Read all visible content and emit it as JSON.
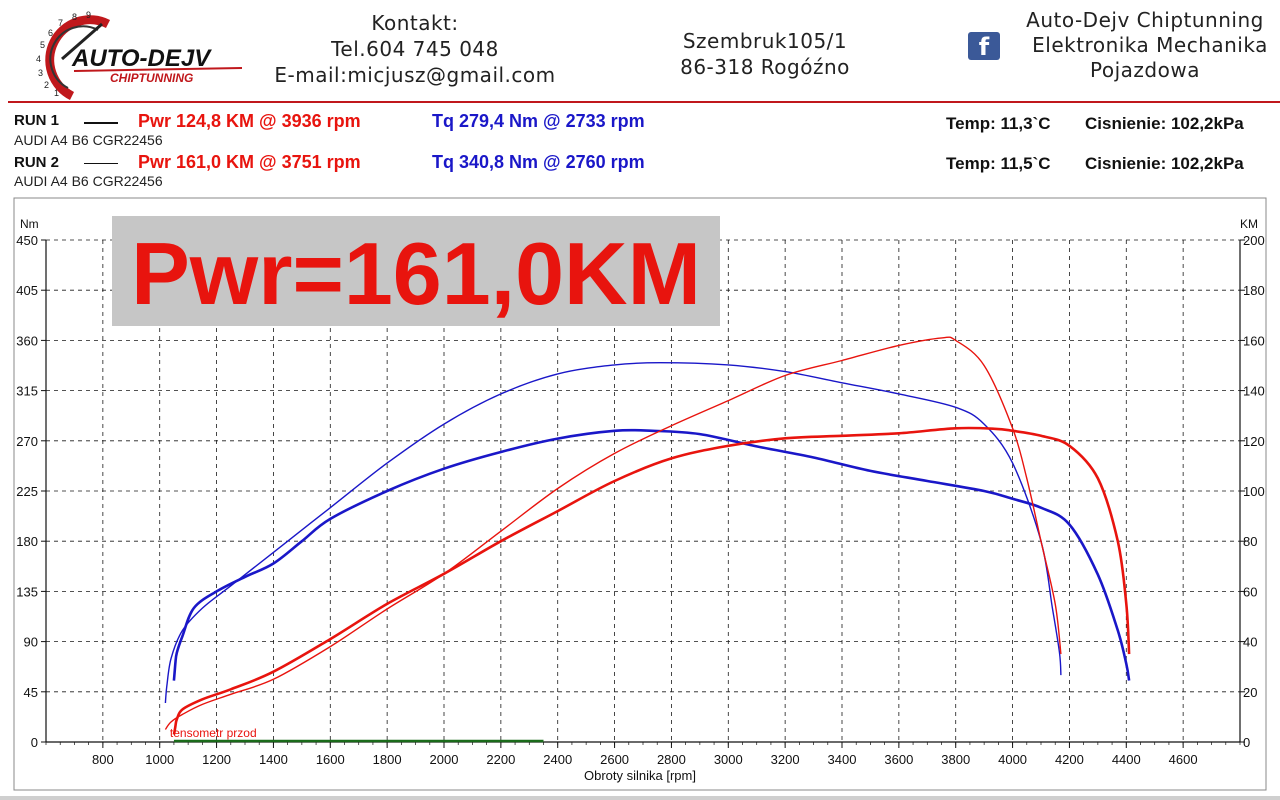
{
  "header": {
    "logo_text": "AUTO-DEJV",
    "logo_sub": "CHIPTUNNING",
    "logo_dial": [
      "1",
      "2",
      "3",
      "4",
      "5",
      "6",
      "7",
      "8",
      "9"
    ],
    "contact_title": "Kontakt:",
    "contact_phone": "Tel.604 745 048",
    "contact_email": "E-mail:micjusz@gmail.com",
    "address_line1": "Szembruk105/1",
    "address_line2": "86-318 Rogóźno",
    "company_line1": "Auto-Dejv Chiptunning",
    "company_line2": "Elektronika  Mechanika",
    "company_line3": "Pojazdowa",
    "fb_icon": "facebook-icon",
    "fb_glyph": "f"
  },
  "runs": [
    {
      "label": "RUN 1",
      "pwr": "Pwr  124,8 KM @ 3936 rpm",
      "tq": "Tq 279,4 Nm @ 2733 rpm",
      "car": "AUDI A4 B6 CGR22456",
      "temp": "Temp: 11,3`C",
      "pressure": "Cisnienie: 102,2kPa"
    },
    {
      "label": "RUN 2",
      "pwr": "Pwr  161,0 KM @ 3751 rpm",
      "tq": "Tq 340,8 Nm @ 2760 rpm",
      "car": "AUDI A4 B6 CGR22456",
      "temp": "Temp: 11,5`C",
      "pressure": "Cisnienie: 102,2kPa"
    }
  ],
  "colors": {
    "power": "#e8140e",
    "torque": "#1a17c8",
    "accent": "#c0181c",
    "banner_bg": "#c6c6c6",
    "tensometer": "#1a6b1a",
    "grid": "#1a1a1a"
  },
  "chart_data": {
    "type": "line",
    "banner": "Pwr=161,0KM",
    "annotation": "tensometr przod",
    "xlabel": "Obroty silnika [rpm]",
    "ylabel_left": "Nm",
    "ylabel_right": "KM",
    "xlim": [
      600,
      4800
    ],
    "ylim_left": [
      0,
      450
    ],
    "ylim_right": [
      0,
      200
    ],
    "xticks": [
      800,
      1000,
      1200,
      1400,
      1600,
      1800,
      2000,
      2200,
      2400,
      2600,
      2800,
      3000,
      3200,
      3400,
      3600,
      3800,
      4000,
      4200,
      4400,
      4600
    ],
    "yticks_left": [
      0,
      45,
      90,
      135,
      180,
      225,
      270,
      315,
      360,
      405,
      450
    ],
    "yticks_right": [
      0,
      20,
      40,
      60,
      80,
      100,
      120,
      140,
      160,
      180,
      200
    ],
    "grid": true,
    "series": [
      {
        "key": "tq_run2",
        "axis": "left",
        "color": "#1a17c8",
        "width": 1.4,
        "x": [
          1020,
          1025,
          1040,
          1080,
          1150,
          1250,
          1400,
          1600,
          1800,
          2000,
          2200,
          2400,
          2600,
          2760,
          3000,
          3200,
          3400,
          3600,
          3800,
          3900,
          4000,
          4100,
          4140,
          4165,
          4170
        ],
        "y": [
          35,
          50,
          75,
          100,
          120,
          140,
          170,
          210,
          250,
          285,
          312,
          330,
          338,
          340,
          338,
          332,
          322,
          312,
          300,
          285,
          250,
          180,
          120,
          80,
          60
        ]
      },
      {
        "key": "tq_run1",
        "axis": "left",
        "color": "#1a17c8",
        "width": 2.6,
        "x": [
          1050,
          1055,
          1060,
          1080,
          1120,
          1200,
          1300,
          1400,
          1500,
          1600,
          1800,
          2000,
          2200,
          2400,
          2600,
          2733,
          2900,
          3100,
          3300,
          3500,
          3700,
          3900,
          4000,
          4100,
          4200,
          4300,
          4370,
          4400,
          4410
        ],
        "y": [
          55,
          70,
          80,
          95,
          120,
          135,
          148,
          160,
          180,
          200,
          225,
          245,
          260,
          272,
          279,
          279,
          276,
          265,
          255,
          243,
          234,
          225,
          218,
          210,
          195,
          150,
          100,
          70,
          55
        ]
      },
      {
        "key": "pwr_run2",
        "axis": "right",
        "color": "#e8140e",
        "width": 1.4,
        "x": [
          1020,
          1040,
          1080,
          1150,
          1250,
          1400,
          1600,
          1800,
          2000,
          2200,
          2400,
          2600,
          2800,
          3000,
          3200,
          3400,
          3600,
          3751,
          3800,
          3900,
          4000,
          4050,
          4100,
          4150,
          4170
        ],
        "y": [
          5,
          8,
          11,
          15,
          19,
          25,
          38,
          53,
          67,
          84,
          101,
          115,
          126,
          136,
          146,
          152,
          158,
          161,
          160,
          150,
          125,
          105,
          80,
          55,
          35
        ]
      },
      {
        "key": "pwr_run1",
        "axis": "right",
        "color": "#e8140e",
        "width": 2.6,
        "x": [
          1050,
          1055,
          1060,
          1080,
          1150,
          1250,
          1400,
          1600,
          1800,
          2000,
          2200,
          2400,
          2600,
          2800,
          3000,
          3200,
          3400,
          3600,
          3800,
          3936,
          4000,
          4100,
          4200,
          4300,
          4370,
          4400,
          4410
        ],
        "y": [
          3,
          6,
          9,
          13,
          17,
          21,
          28,
          41,
          55,
          67,
          80,
          92,
          104,
          113,
          118,
          121,
          122,
          123,
          125,
          124.8,
          124,
          122,
          118,
          105,
          80,
          55,
          35
        ]
      }
    ],
    "tensometer_line": {
      "x": [
        1050,
        2350
      ],
      "y_left": 0
    }
  }
}
